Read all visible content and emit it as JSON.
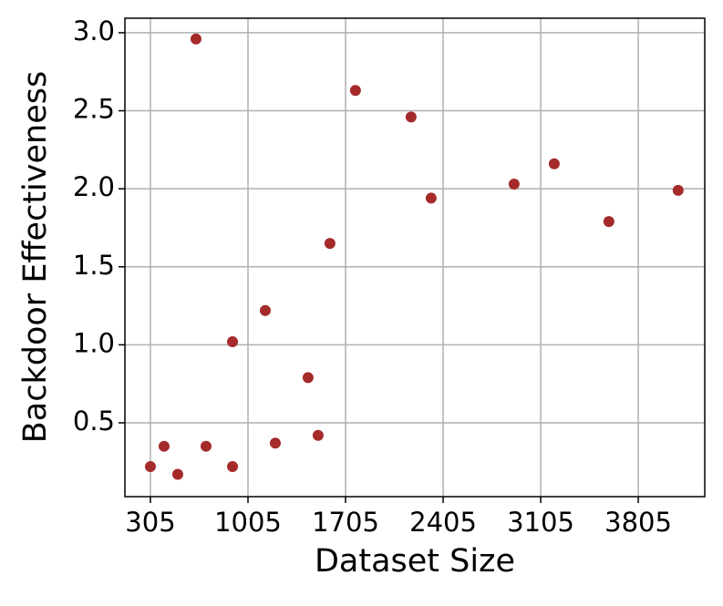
{
  "chart_data": {
    "type": "scatter",
    "x_label": "Dataset Size",
    "y_label": "Backdoor Effectiveness",
    "x": [
      305,
      403,
      501,
      632,
      704,
      894,
      894,
      1129,
      1201,
      1436,
      1508,
      1593,
      1776,
      2175,
      2319,
      2914,
      3202,
      3594,
      4091
    ],
    "values": [
      0.22,
      0.35,
      0.17,
      2.96,
      0.35,
      1.02,
      0.22,
      1.22,
      0.37,
      0.79,
      0.42,
      1.65,
      2.63,
      2.46,
      1.94,
      2.03,
      2.16,
      1.79,
      1.99
    ],
    "color": "#a52a2a",
    "xlim": [
      122,
      4282
    ],
    "xticks": [
      305,
      1005,
      1705,
      2405,
      3105,
      3805
    ],
    "ylim": [
      0.027,
      3.093
    ],
    "yticks": [
      {
        "value": 0.5,
        "label": "0.5"
      },
      {
        "value": 1,
        "label": "1.0"
      },
      {
        "value": 1.5,
        "label": "1.5"
      },
      {
        "value": 2,
        "label": "2.0"
      },
      {
        "value": 2.5,
        "label": "2.5"
      },
      {
        "value": 3,
        "label": "3.0"
      }
    ],
    "grid": true
  }
}
